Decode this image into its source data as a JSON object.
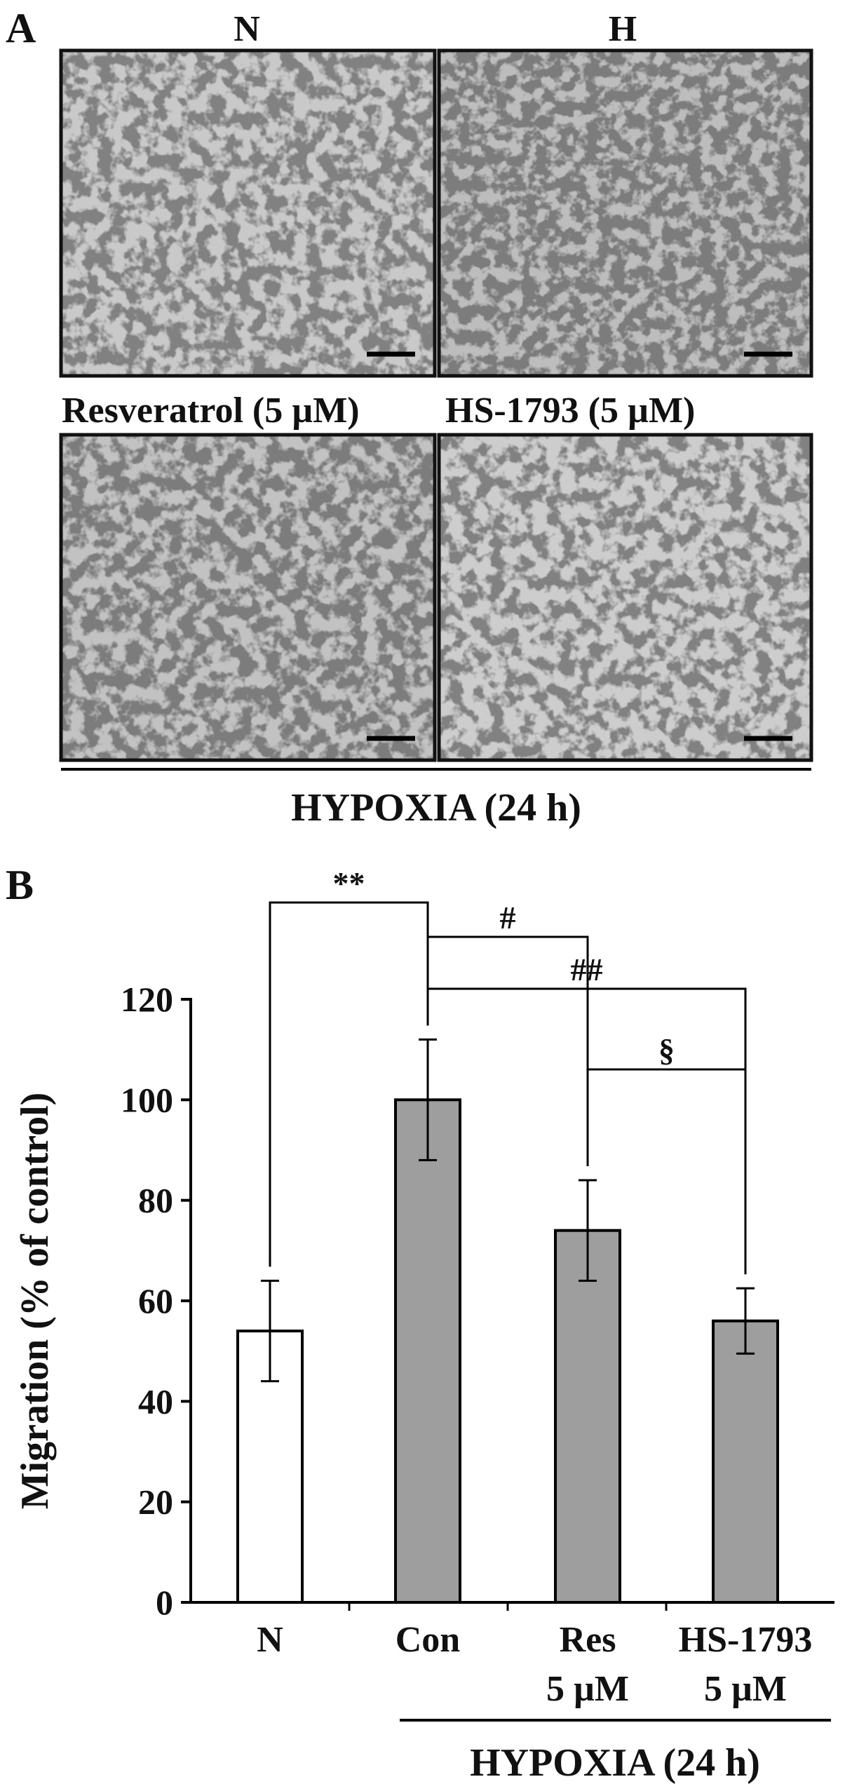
{
  "panel_a": {
    "letter": "A",
    "col_labels": [
      "N",
      "H"
    ],
    "row_labels": [
      "Resveratrol (5 µM)",
      "HS-1793 (5 µM)"
    ],
    "bracket_label": "HYPOXIA (24 h)"
  },
  "panel_b": {
    "letter": "B",
    "bracket_label": "HYPOXIA (24 h)"
  },
  "chart_data": {
    "type": "bar",
    "categories": [
      "N",
      "Con",
      "Res\n5 µM",
      "HS-1793\n5 µM"
    ],
    "category_lines": [
      [
        "N"
      ],
      [
        "Con"
      ],
      [
        "Res",
        "5 µM"
      ],
      [
        "HS-1793",
        "5 µM"
      ]
    ],
    "values": [
      54,
      100,
      74,
      56
    ],
    "errors": [
      10,
      12,
      10,
      6.5
    ],
    "bar_fills": [
      "#ffffff",
      "#9e9e9e",
      "#9e9e9e",
      "#9e9e9e"
    ],
    "ylabel": "Migration (% of control)",
    "ylim": [
      0,
      120
    ],
    "yticks": [
      0,
      20,
      40,
      60,
      80,
      100,
      120
    ],
    "grid": false,
    "significance": [
      {
        "from": 0,
        "to": 1,
        "label": "**"
      },
      {
        "from": 1,
        "to": 2,
        "label": "#"
      },
      {
        "from": 1,
        "to": 3,
        "label": "##"
      },
      {
        "from": 2,
        "to": 3,
        "label": "§"
      }
    ]
  }
}
